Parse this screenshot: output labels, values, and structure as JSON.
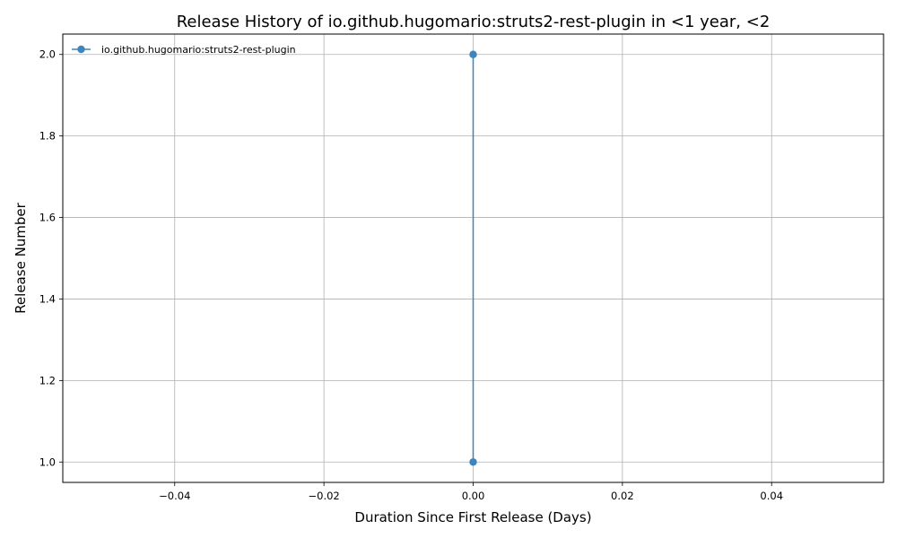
{
  "chart_data": {
    "type": "line",
    "title": "Release History of io.github.hugomario:struts2-rest-plugin in <1 year, <2",
    "xlabel": "Duration Since First Release (Days)",
    "ylabel": "Release Number",
    "xlim": [
      -0.055,
      0.055
    ],
    "ylim": [
      0.95,
      2.05
    ],
    "xticks": [
      -0.04,
      -0.02,
      0.0,
      0.02,
      0.04
    ],
    "xtick_labels": [
      "−0.04",
      "−0.02",
      "0.00",
      "0.02",
      "0.04"
    ],
    "yticks": [
      1.0,
      1.2,
      1.4,
      1.6,
      1.8,
      2.0
    ],
    "ytick_labels": [
      "1.0",
      "1.2",
      "1.4",
      "1.6",
      "1.8",
      "2.0"
    ],
    "grid": true,
    "legend_position": "top-left",
    "series": [
      {
        "name": "io.github.hugomario:struts2-rest-plugin",
        "color": "#3d85bc",
        "marker": "circle",
        "points": [
          {
            "x": 0.0,
            "y": 1
          },
          {
            "x": 0.0,
            "y": 2
          }
        ]
      }
    ]
  }
}
